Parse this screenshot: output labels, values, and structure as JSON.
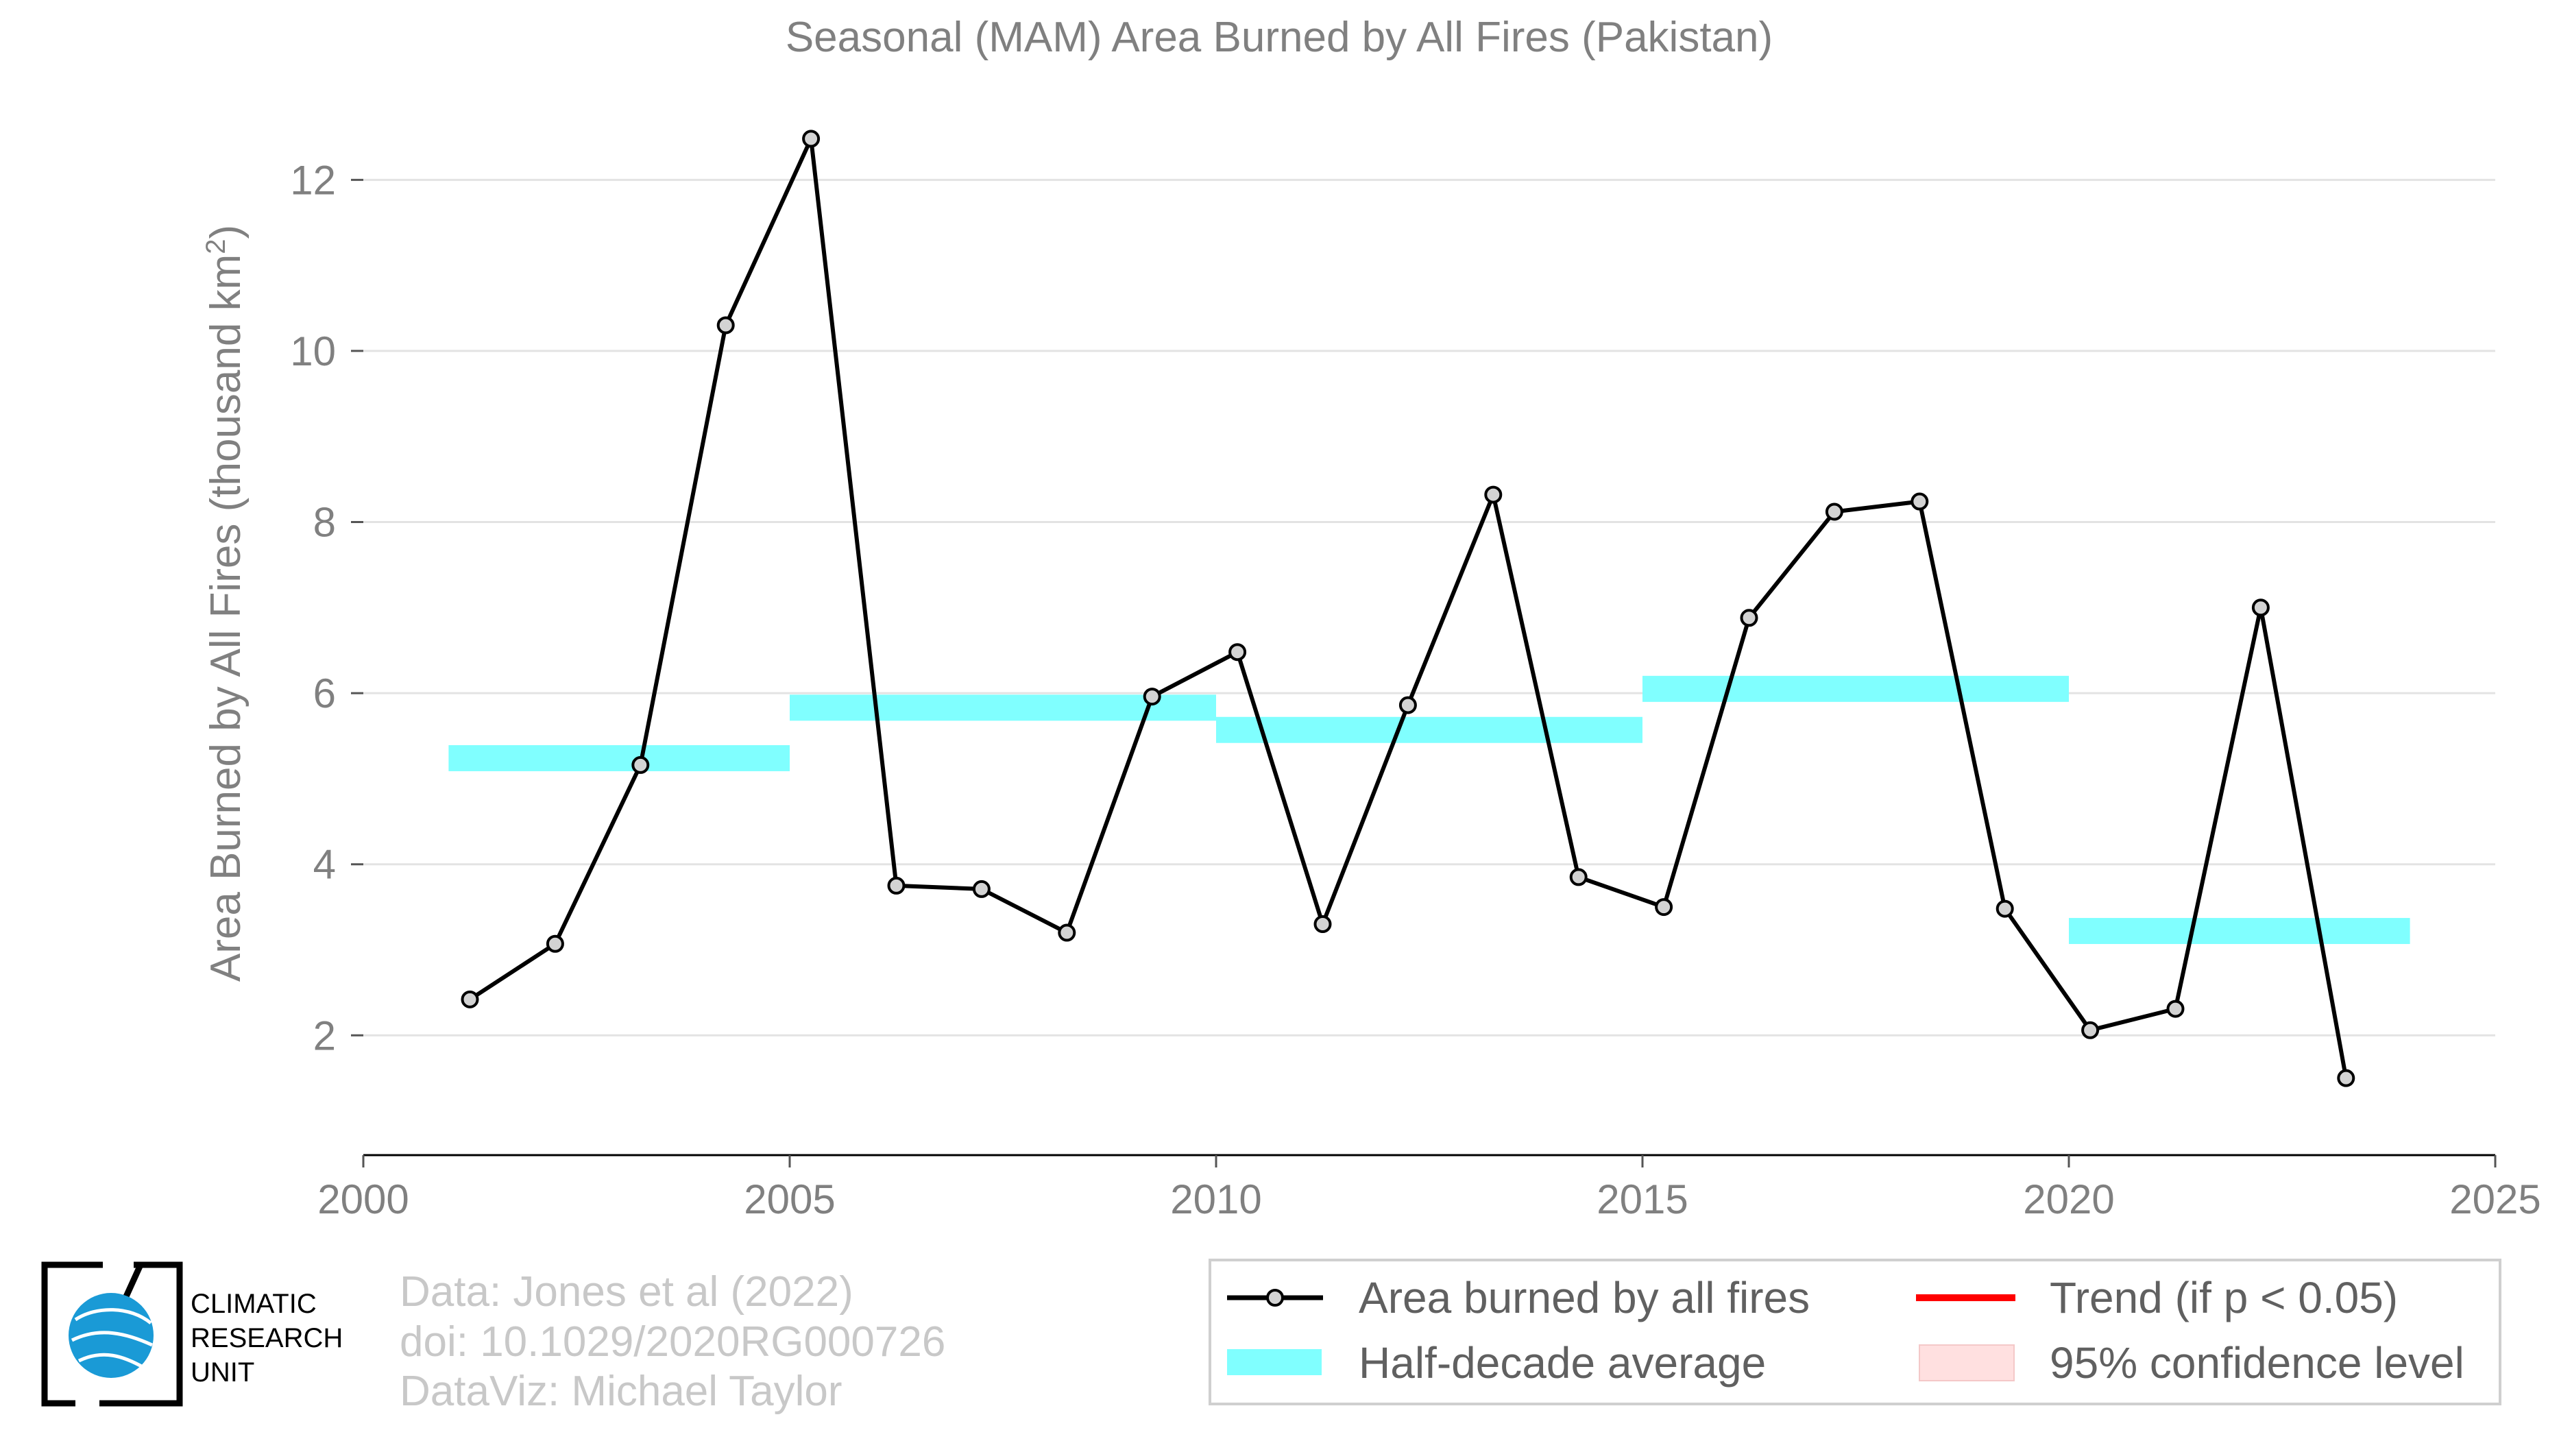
{
  "chart_data": {
    "type": "line",
    "title": "Seasonal (MAM) Area Burned by All Fires (Pakistan)",
    "ylabel": "Area Burned by All Fires (thousand km",
    "ylabel_sup": "2",
    "ylabel_close": ")",
    "xlabel": "",
    "xlim": [
      2000,
      2025
    ],
    "ylim": [
      0.6,
      12.9
    ],
    "xticks": [
      2000,
      2005,
      2010,
      2015,
      2020,
      2025
    ],
    "yticks": [
      2,
      4,
      6,
      8,
      10,
      12
    ],
    "grid": true,
    "series": [
      {
        "name": "Area burned by all fires",
        "color": "#000000",
        "marker_color": "#d3d3d3",
        "x": [
          2001.25,
          2002.25,
          2003.25,
          2004.25,
          2005.25,
          2006.25,
          2007.25,
          2008.25,
          2009.25,
          2010.25,
          2011.25,
          2012.25,
          2013.25,
          2014.25,
          2015.25,
          2016.25,
          2017.25,
          2018.25,
          2019.25,
          2020.25,
          2021.25,
          2022.25,
          2023.25
        ],
        "y": [
          2.42,
          3.07,
          5.16,
          10.3,
          12.48,
          3.75,
          3.71,
          3.2,
          5.96,
          6.48,
          3.3,
          5.86,
          8.32,
          3.85,
          3.5,
          6.88,
          8.12,
          8.24,
          3.48,
          2.06,
          2.31,
          7.0,
          1.5
        ]
      }
    ],
    "half_decade_average": {
      "name": "Half-decade average",
      "color": "#80ffff",
      "segments": [
        {
          "x0": 2001,
          "x1": 2005,
          "y": 5.24
        },
        {
          "x0": 2005,
          "x1": 2010,
          "y": 5.83
        },
        {
          "x0": 2010,
          "x1": 2015,
          "y": 5.57
        },
        {
          "x0": 2015,
          "x1": 2020,
          "y": 6.05
        },
        {
          "x0": 2020,
          "x1": 2024,
          "y": 3.22
        }
      ]
    },
    "legend": {
      "placement": "bottom-right",
      "entries": [
        {
          "label": "Area burned by all fires",
          "kind": "line-marker",
          "color": "#000000"
        },
        {
          "label": "Trend (if p < 0.05)",
          "kind": "line",
          "color": "#ff0000"
        },
        {
          "label": "Half-decade average",
          "kind": "band",
          "color": "#80ffff"
        },
        {
          "label": "95% confidence level",
          "kind": "band",
          "color": "#ffe0e0"
        }
      ]
    }
  },
  "credits": {
    "line1": "Data: Jones et al (2022)",
    "line2": "doi: 10.1029/2020RG000726",
    "line3": "DataViz: Michael Taylor"
  },
  "logo": {
    "line1": "CLIMATIC",
    "line2": "RESEARCH",
    "line3": "UNIT",
    "globe_color": "#1a9ad6"
  }
}
